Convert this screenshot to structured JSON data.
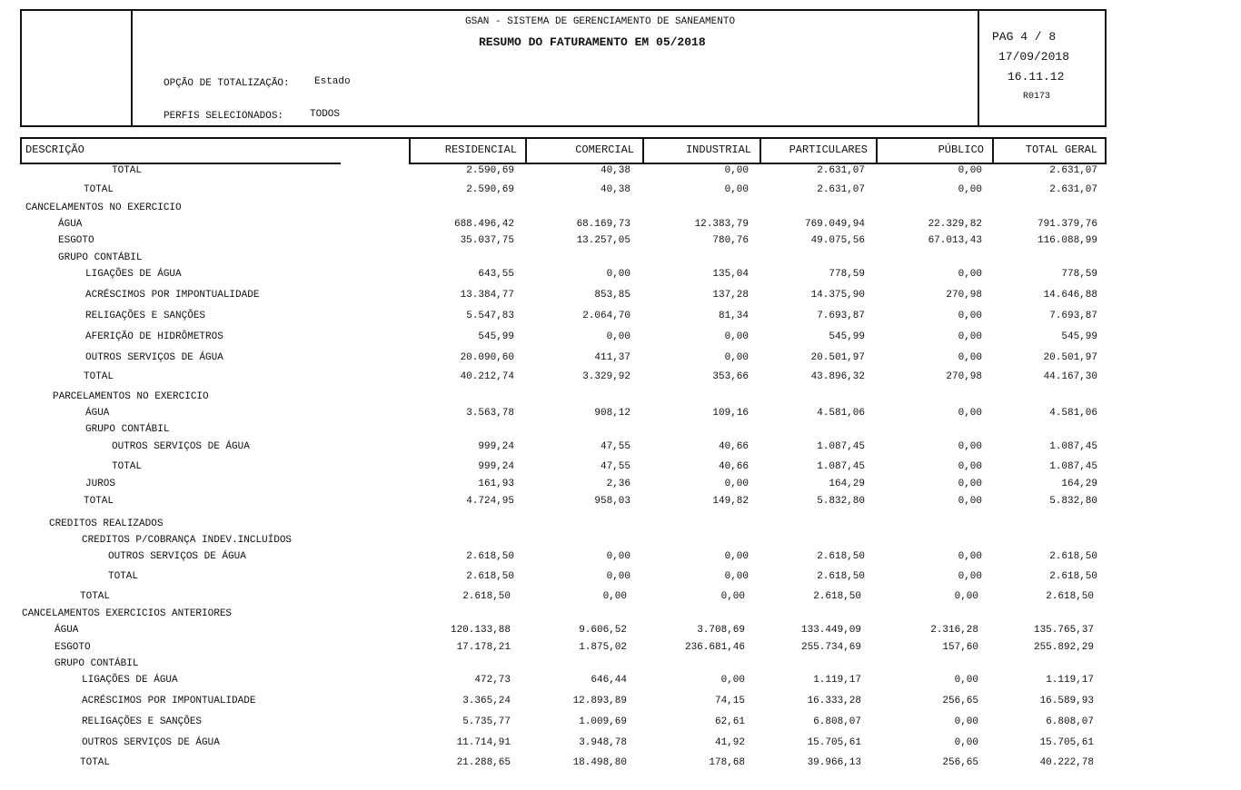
{
  "header": {
    "system": "GSAN - SISTEMA DE GERENCIAMENTO DE SANEAMENTO",
    "title": "RESUMO DO FATURAMENTO EM 05/2018",
    "page": "PAG 4 / 8",
    "date": "17/09/2018",
    "time": "16.11.12",
    "report_code": "R0173",
    "option_label": "OPÇÃO DE TOTALIZAÇÃO:",
    "option_value": "Estado",
    "profiles_label": "PERFIS SELECIONADOS:",
    "profiles_value": "TODOS"
  },
  "table": {
    "columns": [
      "DESCRIÇÃO",
      "RESIDENCIAL",
      "COMERCIAL",
      "INDUSTRIAL",
      "PARTICULARES",
      "PÚBLICO",
      "TOTAL GERAL"
    ],
    "rows": [
      {
        "label": "TOTAL",
        "values": [
          "2.590,69",
          "40,38",
          "0,00",
          "2.631,07",
          "0,00",
          "2.631,07"
        ]
      },
      {
        "label": "TOTAL",
        "values": [
          "2.590,69",
          "40,38",
          "0,00",
          "2.631,07",
          "0,00",
          "2.631,07"
        ]
      },
      {
        "label": "CANCELAMENTOS NO EXERCICIO"
      },
      {
        "label": "ÁGUA",
        "values": [
          "688.496,42",
          "68.169,73",
          "12.383,79",
          "769.049,94",
          "22.329,82",
          "791.379,76"
        ]
      },
      {
        "label": "ESGOTO",
        "values": [
          "35.037,75",
          "13.257,05",
          "780,76",
          "49.075,56",
          "67.013,43",
          "116.088,99"
        ]
      },
      {
        "label": "GRUPO CONTÁBIL"
      },
      {
        "label": "LIGAÇÕES DE ÁGUA",
        "values": [
          "643,55",
          "0,00",
          "135,04",
          "778,59",
          "0,00",
          "778,59"
        ]
      },
      {
        "label": "ACRÉSCIMOS POR IMPONTUALIDADE",
        "values": [
          "13.384,77",
          "853,85",
          "137,28",
          "14.375,90",
          "270,98",
          "14.646,88"
        ]
      },
      {
        "label": "RELIGAÇÕES E SANÇÕES",
        "values": [
          "5.547,83",
          "2.064,70",
          "81,34",
          "7.693,87",
          "0,00",
          "7.693,87"
        ]
      },
      {
        "label": "AFERIÇÃO DE HIDRÔMETROS",
        "values": [
          "545,99",
          "0,00",
          "0,00",
          "545,99",
          "0,00",
          "545,99"
        ]
      },
      {
        "label": "OUTROS SERVIÇOS DE ÁGUA",
        "values": [
          "20.090,60",
          "411,37",
          "0,00",
          "20.501,97",
          "0,00",
          "20.501,97"
        ]
      },
      {
        "label": "TOTAL",
        "values": [
          "40.212,74",
          "3.329,92",
          "353,66",
          "43.896,32",
          "270,98",
          "44.167,30"
        ]
      },
      {
        "label": "PARCELAMENTOS NO EXERCICIO"
      },
      {
        "label": "ÁGUA",
        "values": [
          "3.563,78",
          "908,12",
          "109,16",
          "4.581,06",
          "0,00",
          "4.581,06"
        ]
      },
      {
        "label": "GRUPO CONTÁBIL"
      },
      {
        "label": "OUTROS SERVIÇOS DE ÁGUA",
        "values": [
          "999,24",
          "47,55",
          "40,66",
          "1.087,45",
          "0,00",
          "1.087,45"
        ]
      },
      {
        "label": "TOTAL",
        "values": [
          "999,24",
          "47,55",
          "40,66",
          "1.087,45",
          "0,00",
          "1.087,45"
        ]
      },
      {
        "label": "JUROS",
        "values": [
          "161,93",
          "2,36",
          "0,00",
          "164,29",
          "0,00",
          "164,29"
        ]
      },
      {
        "label": "TOTAL",
        "values": [
          "4.724,95",
          "958,03",
          "149,82",
          "5.832,80",
          "0,00",
          "5.832,80"
        ]
      },
      {
        "label": "CREDITOS REALIZADOS"
      },
      {
        "label": "CREDITOS P/COBRANÇA INDEV.INCLUÍDOS"
      },
      {
        "label": "OUTROS SERVIÇOS DE ÁGUA",
        "values": [
          "2.618,50",
          "0,00",
          "0,00",
          "2.618,50",
          "0,00",
          "2.618,50"
        ]
      },
      {
        "label": "TOTAL",
        "values": [
          "2.618,50",
          "0,00",
          "0,00",
          "2.618,50",
          "0,00",
          "2.618,50"
        ]
      },
      {
        "label": "TOTAL",
        "values": [
          "2.618,50",
          "0,00",
          "0,00",
          "2.618,50",
          "0,00",
          "2.618,50"
        ]
      },
      {
        "label": "CANCELAMENTOS EXERCICIOS ANTERIORES"
      },
      {
        "label": "ÁGUA",
        "values": [
          "120.133,88",
          "9.606,52",
          "3.708,69",
          "133.449,09",
          "2.316,28",
          "135.765,37"
        ]
      },
      {
        "label": "ESGOTO",
        "values": [
          "17.178,21",
          "1.875,02",
          "236.681,46",
          "255.734,69",
          "157,60",
          "255.892,29"
        ]
      },
      {
        "label": "GRUPO CONTÁBIL"
      },
      {
        "label": "LIGAÇÕES DE ÁGUA",
        "values": [
          "472,73",
          "646,44",
          "0,00",
          "1.119,17",
          "0,00",
          "1.119,17"
        ]
      },
      {
        "label": "ACRÉSCIMOS POR IMPONTUALIDADE",
        "values": [
          "3.365,24",
          "12.893,89",
          "74,15",
          "16.333,28",
          "256,65",
          "16.589,93"
        ]
      },
      {
        "label": "RELIGAÇÕES E SANÇÕES",
        "values": [
          "5.735,77",
          "1.009,69",
          "62,61",
          "6.808,07",
          "0,00",
          "6.808,07"
        ]
      },
      {
        "label": "OUTROS SERVIÇOS DE ÁGUA",
        "values": [
          "11.714,91",
          "3.948,78",
          "41,92",
          "15.705,61",
          "0,00",
          "15.705,61"
        ]
      },
      {
        "label": "TOTAL",
        "values": [
          "21.288,65",
          "18.498,80",
          "178,68",
          "39.966,13",
          "256,65",
          "40.222,78"
        ]
      }
    ]
  }
}
